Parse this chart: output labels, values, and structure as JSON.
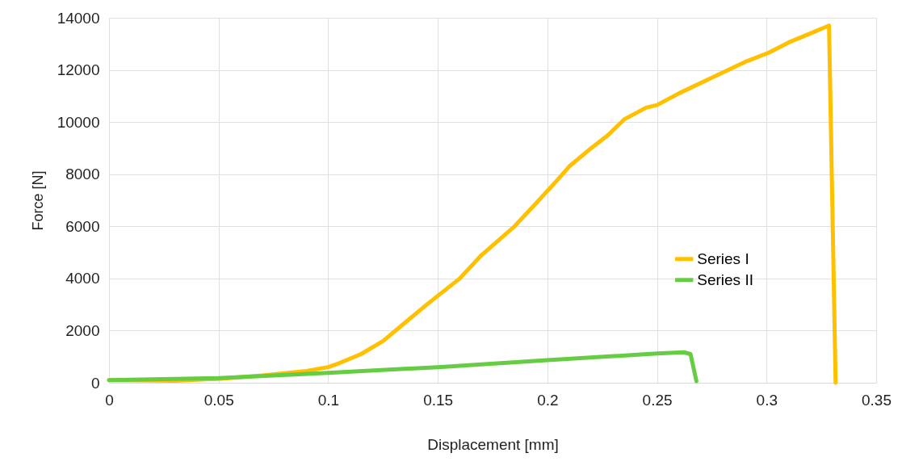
{
  "chart_data": {
    "type": "line",
    "xlabel": "Displacement [mm]",
    "ylabel": "Force [N]",
    "xlim": [
      0,
      0.35
    ],
    "xticks": [
      0,
      0.05,
      0.1,
      0.15,
      0.2,
      0.25,
      0.3,
      0.35
    ],
    "ylim": [
      0,
      14000
    ],
    "yticks": [
      0,
      2000,
      4000,
      6000,
      8000,
      10000,
      12000,
      14000
    ],
    "grid": true,
    "legend": "right",
    "line_style": "solid",
    "marker": "none",
    "series": [
      {
        "name": "Series I",
        "color": "#ffc000",
        "x": [
          0,
          0.03,
          0.05,
          0.07,
          0.09,
          0.1,
          0.105,
          0.115,
          0.125,
          0.135,
          0.145,
          0.16,
          0.17,
          0.185,
          0.195,
          0.2045,
          0.21,
          0.22,
          0.2277,
          0.235,
          0.245,
          0.25,
          0.26,
          0.275,
          0.29,
          0.301,
          0.31,
          0.32,
          0.3285,
          0.3315
        ],
        "values": [
          100,
          80,
          150,
          280,
          450,
          600,
          750,
          1100,
          1600,
          2300,
          3000,
          4000,
          4900,
          6000,
          6900,
          7770,
          8300,
          9000,
          9500,
          10100,
          10550,
          10650,
          11100,
          11700,
          12300,
          12660,
          13050,
          13400,
          13700,
          0
        ]
      },
      {
        "name": "Series II",
        "color": "#66cc44",
        "x": [
          0,
          0.05,
          0.1,
          0.15,
          0.2,
          0.25,
          0.2623,
          0.2653,
          0.268
        ],
        "values": [
          100,
          180,
          380,
          600,
          870,
          1120,
          1170,
          1100,
          60
        ]
      }
    ]
  }
}
